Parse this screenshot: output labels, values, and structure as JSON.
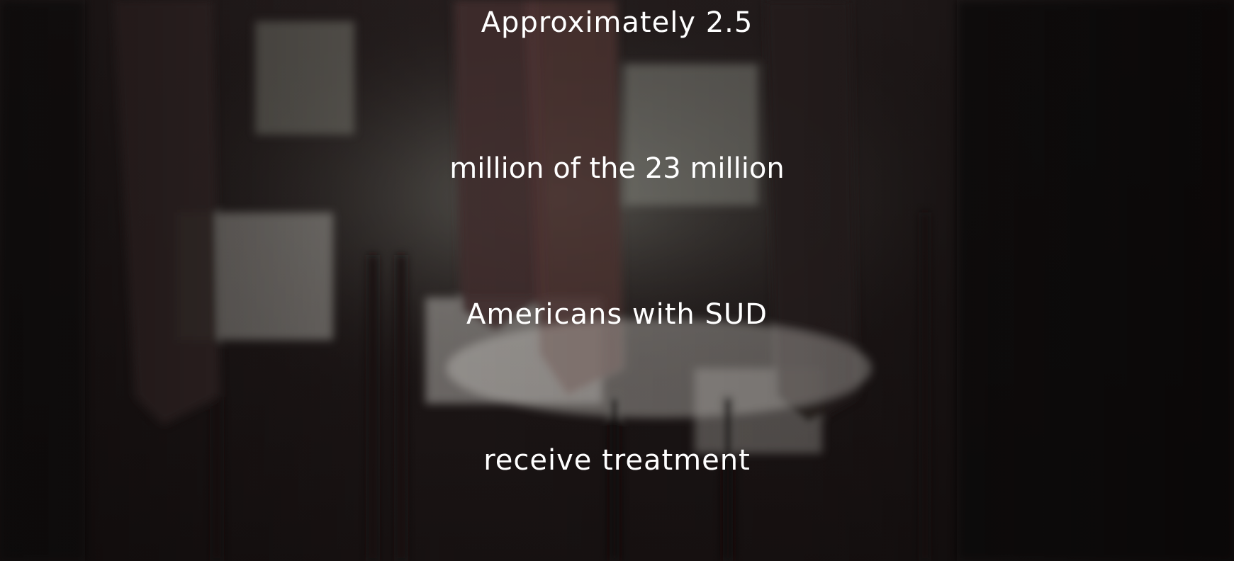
{
  "slide": {
    "lines": [
      "Approximately 2.5",
      "million of the 23 million",
      "Americans with SUD",
      "receive treatment"
    ]
  }
}
